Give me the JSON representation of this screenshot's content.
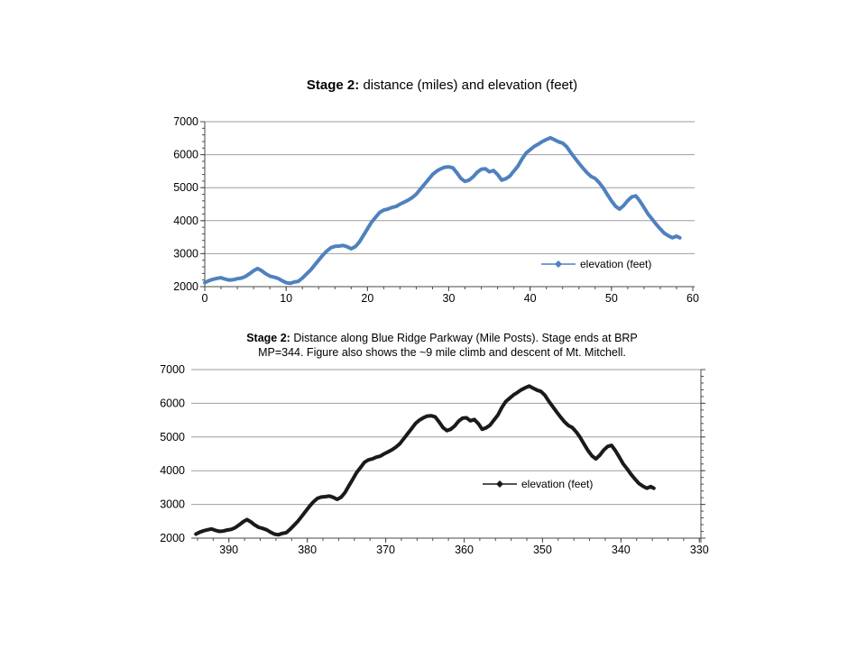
{
  "colors": {
    "background": "#ffffff",
    "grid": "#9e9e9e",
    "axis": "#4a4a4a",
    "text": "#000000",
    "series_top": "#4F81BD",
    "series_bottom": "#1a1a1a"
  },
  "chart_data": [
    {
      "type": "line",
      "title": {
        "bold": "Stage 2:",
        "rest": " distance (miles) and elevation (feet)"
      },
      "xlabel": "",
      "ylabel": "",
      "xlim": [
        0,
        60
      ],
      "ylim": [
        2000,
        7000
      ],
      "x_ticks": [
        0,
        10,
        20,
        30,
        40,
        50,
        60
      ],
      "x_minor_step": 2,
      "y_ticks": [
        2000,
        3000,
        4000,
        5000,
        6000,
        7000
      ],
      "y_minor_step": 200,
      "grid": true,
      "y_axis_side": "left",
      "legend_position": "inside-right",
      "series": [
        {
          "name": "elevation (feet)",
          "color": "#4F81BD",
          "x": [
            0,
            0.5,
            1,
            1.5,
            2,
            2.5,
            3,
            3.5,
            4,
            4.5,
            5,
            5.5,
            6,
            6.5,
            7,
            7.5,
            8,
            8.5,
            9,
            9.5,
            10,
            10.5,
            11,
            11.5,
            12,
            12.5,
            13,
            13.5,
            14,
            14.5,
            15,
            15.5,
            16,
            16.5,
            17,
            17.5,
            18,
            18.5,
            19,
            19.5,
            20,
            20.5,
            21,
            21.5,
            22,
            22.5,
            23,
            23.5,
            24,
            24.5,
            25,
            25.5,
            26,
            26.5,
            27,
            27.5,
            28,
            28.5,
            29,
            29.5,
            30,
            30.5,
            31,
            31.5,
            32,
            32.5,
            33,
            33.5,
            34,
            34.5,
            35,
            35.5,
            36,
            36.5,
            37,
            37.5,
            38,
            38.5,
            39,
            39.5,
            40,
            40.5,
            41,
            41.5,
            42,
            42.5,
            43,
            43.5,
            44,
            44.5,
            45,
            45.5,
            46,
            46.5,
            47,
            47.5,
            48,
            48.5,
            49,
            49.5,
            50,
            50.5,
            51,
            51.5,
            52,
            52.5,
            53,
            53.5,
            54,
            54.5,
            55,
            55.5,
            56,
            56.5,
            57,
            57.5,
            58,
            58.4
          ],
          "y": [
            2120,
            2180,
            2220,
            2250,
            2270,
            2230,
            2200,
            2210,
            2240,
            2260,
            2310,
            2390,
            2480,
            2550,
            2480,
            2390,
            2320,
            2290,
            2250,
            2180,
            2120,
            2100,
            2140,
            2160,
            2260,
            2380,
            2500,
            2650,
            2800,
            2950,
            3080,
            3180,
            3220,
            3230,
            3250,
            3210,
            3150,
            3210,
            3350,
            3550,
            3750,
            3950,
            4100,
            4250,
            4320,
            4350,
            4400,
            4430,
            4500,
            4560,
            4620,
            4700,
            4800,
            4950,
            5100,
            5250,
            5400,
            5500,
            5570,
            5620,
            5630,
            5600,
            5450,
            5280,
            5190,
            5230,
            5330,
            5470,
            5560,
            5570,
            5480,
            5520,
            5400,
            5230,
            5270,
            5350,
            5500,
            5650,
            5870,
            6050,
            6150,
            6250,
            6320,
            6400,
            6460,
            6510,
            6450,
            6390,
            6350,
            6240,
            6060,
            5900,
            5740,
            5590,
            5450,
            5340,
            5280,
            5150,
            4990,
            4790,
            4600,
            4440,
            4350,
            4460,
            4610,
            4720,
            4750,
            4590,
            4400,
            4200,
            4050,
            3890,
            3750,
            3620,
            3540,
            3480,
            3530,
            3480
          ]
        }
      ]
    },
    {
      "type": "line",
      "title": {
        "bold": "Stage 2:",
        "rest": " Distance along Blue Ridge Parkway (Mile Posts). Stage ends at BRP",
        "line2": "MP=344. Figure also shows the ~9 mile climb and descent of Mt. Mitchell."
      },
      "xlabel": "",
      "ylabel": "",
      "xlim": [
        394.8,
        329.8
      ],
      "x_reversed": true,
      "ylim": [
        2000,
        7000
      ],
      "x_ticks": [
        390,
        380,
        370,
        360,
        350,
        340,
        330
      ],
      "x_minor_step": 2,
      "y_ticks": [
        2000,
        3000,
        4000,
        5000,
        6000,
        7000
      ],
      "y_minor_step": 200,
      "grid": true,
      "y_axis_side": "right",
      "legend_position": "inside-center",
      "series": [
        {
          "name": "elevation (feet)",
          "color": "#1a1a1a",
          "x": [
            394.2,
            393.7,
            393.2,
            392.7,
            392.2,
            391.7,
            391.2,
            390.7,
            390.2,
            389.7,
            389.2,
            388.7,
            388.2,
            387.7,
            387.2,
            386.7,
            386.2,
            385.7,
            385.2,
            384.7,
            384.2,
            383.7,
            383.2,
            382.7,
            382.2,
            381.7,
            381.2,
            380.7,
            380.2,
            379.7,
            379.2,
            378.7,
            378.2,
            377.7,
            377.2,
            376.7,
            376.2,
            375.7,
            375.2,
            374.7,
            374.2,
            373.7,
            373.2,
            372.7,
            372.2,
            371.7,
            371.2,
            370.7,
            370.2,
            369.7,
            369.2,
            368.7,
            368.2,
            367.7,
            367.2,
            366.7,
            366.2,
            365.7,
            365.2,
            364.7,
            364.2,
            363.7,
            363.2,
            362.7,
            362.2,
            361.7,
            361.2,
            360.7,
            360.2,
            359.7,
            359.2,
            358.7,
            358.2,
            357.7,
            357.2,
            356.7,
            356.2,
            355.7,
            355.2,
            354.7,
            354.2,
            353.7,
            353.2,
            352.7,
            352.2,
            351.7,
            351.2,
            350.7,
            350.2,
            349.7,
            349.2,
            348.7,
            348.2,
            347.7,
            347.2,
            346.7,
            346.2,
            345.7,
            345.2,
            344.7,
            344.2,
            343.7,
            343.2,
            342.7,
            342.2,
            341.7,
            341.2,
            340.7,
            340.2,
            339.7,
            339.2,
            338.7,
            338.2,
            337.7,
            337.2,
            336.7,
            336.2,
            335.8
          ],
          "y": [
            2120,
            2180,
            2220,
            2250,
            2270,
            2230,
            2200,
            2210,
            2240,
            2260,
            2310,
            2390,
            2480,
            2550,
            2480,
            2390,
            2320,
            2290,
            2250,
            2180,
            2120,
            2100,
            2140,
            2160,
            2260,
            2380,
            2500,
            2650,
            2800,
            2950,
            3080,
            3180,
            3220,
            3230,
            3250,
            3210,
            3150,
            3210,
            3350,
            3550,
            3750,
            3950,
            4100,
            4250,
            4320,
            4350,
            4400,
            4430,
            4500,
            4560,
            4620,
            4700,
            4800,
            4950,
            5100,
            5250,
            5400,
            5500,
            5570,
            5620,
            5630,
            5600,
            5450,
            5280,
            5190,
            5230,
            5330,
            5470,
            5560,
            5570,
            5480,
            5520,
            5400,
            5230,
            5270,
            5350,
            5500,
            5650,
            5870,
            6050,
            6150,
            6250,
            6320,
            6400,
            6460,
            6510,
            6450,
            6390,
            6350,
            6240,
            6060,
            5900,
            5740,
            5590,
            5450,
            5340,
            5280,
            5150,
            4990,
            4790,
            4600,
            4440,
            4350,
            4460,
            4610,
            4720,
            4750,
            4590,
            4400,
            4200,
            4050,
            3890,
            3750,
            3620,
            3540,
            3480,
            3530,
            3480
          ]
        }
      ]
    }
  ]
}
